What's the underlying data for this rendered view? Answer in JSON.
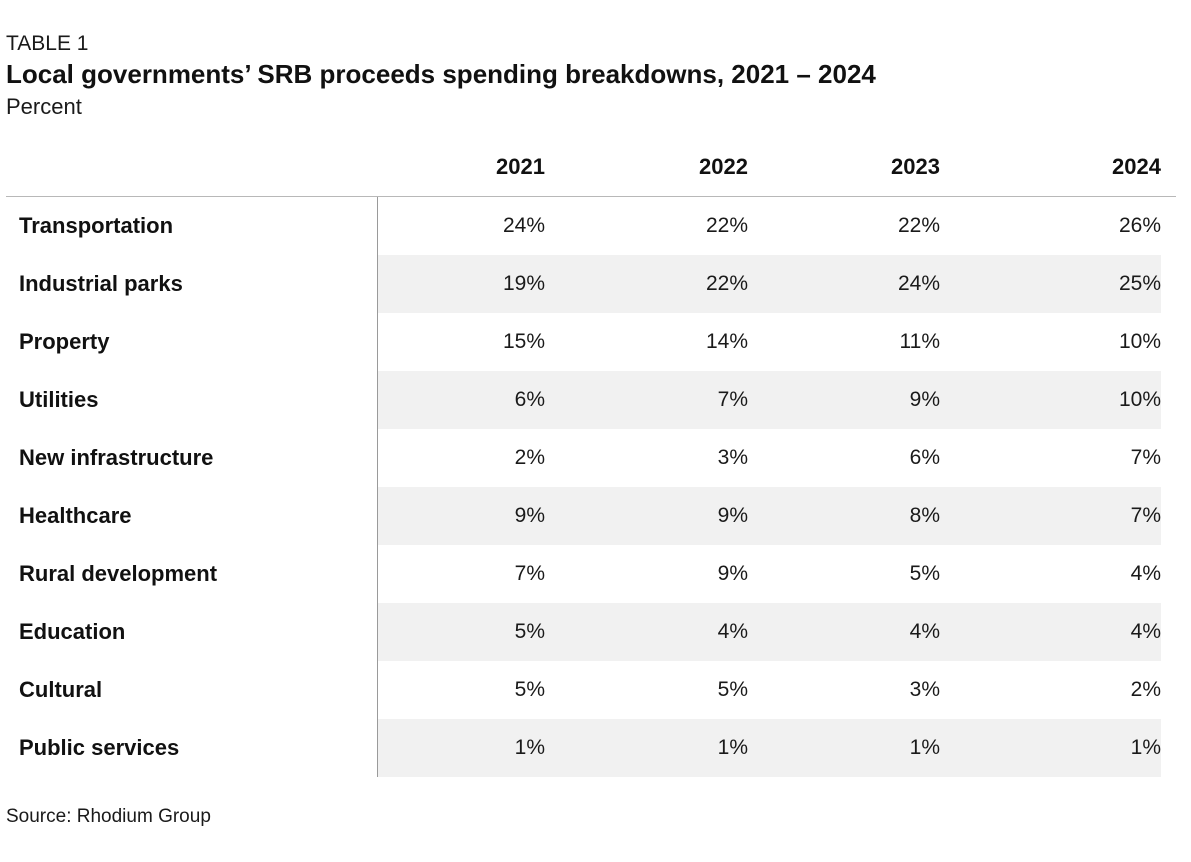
{
  "kicker": "TABLE 1",
  "title": "Local governments’ SRB proceeds spending breakdowns, 2021 – 2024",
  "unit": "Percent",
  "source": "Source: Rhodium Group",
  "chart_data": {
    "type": "table",
    "title": "Local governments’ SRB proceeds spending breakdowns, 2021 – 2024",
    "columns": [
      "2021",
      "2022",
      "2023",
      "2024"
    ],
    "rows": [
      {
        "label": "Transportation",
        "cells": [
          "24%",
          "22%",
          "22%",
          "26%"
        ]
      },
      {
        "label": "Industrial parks",
        "cells": [
          "19%",
          "22%",
          "24%",
          "25%"
        ]
      },
      {
        "label": "Property",
        "cells": [
          "15%",
          "14%",
          "11%",
          "10%"
        ]
      },
      {
        "label": "Utilities",
        "cells": [
          "6%",
          "7%",
          "9%",
          "10%"
        ]
      },
      {
        "label": "New infrastructure",
        "cells": [
          "2%",
          "3%",
          "6%",
          "7%"
        ]
      },
      {
        "label": "Healthcare",
        "cells": [
          "9%",
          "9%",
          "8%",
          "7%"
        ]
      },
      {
        "label": "Rural development",
        "cells": [
          "7%",
          "9%",
          "5%",
          "4%"
        ]
      },
      {
        "label": "Education",
        "cells": [
          "5%",
          "4%",
          "4%",
          "4%"
        ]
      },
      {
        "label": "Cultural",
        "cells": [
          "5%",
          "5%",
          "3%",
          "2%"
        ]
      },
      {
        "label": "Public services",
        "cells": [
          "1%",
          "1%",
          "1%",
          "1%"
        ]
      }
    ]
  }
}
